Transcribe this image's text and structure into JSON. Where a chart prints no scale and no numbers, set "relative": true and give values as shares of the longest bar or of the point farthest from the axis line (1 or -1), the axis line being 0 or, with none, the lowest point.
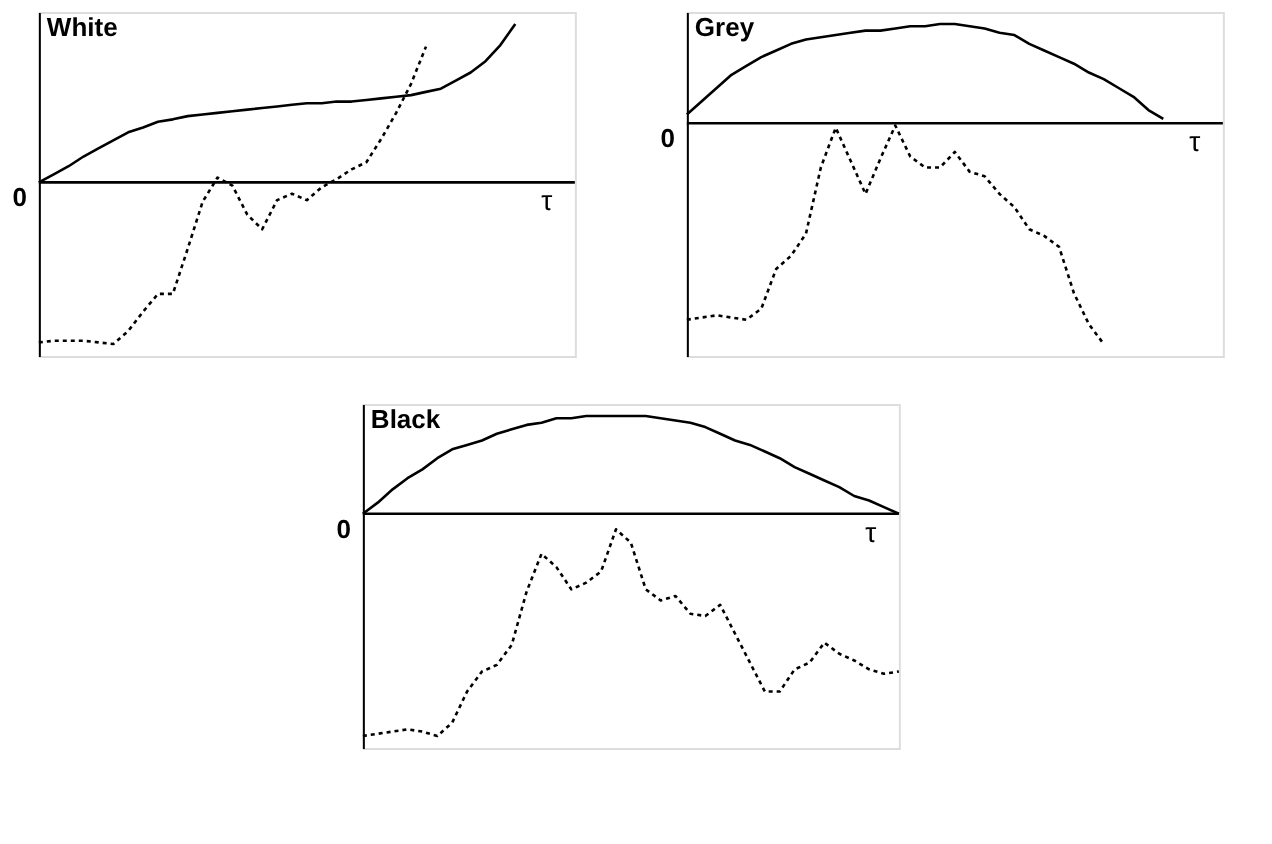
{
  "chart_data": [
    {
      "type": "line",
      "title": "White",
      "xlabel": "τ",
      "annotations": [
        "0"
      ],
      "relative": true,
      "legend": false,
      "grid": false,
      "marker": "none",
      "categories": [
        null,
        null,
        null,
        null,
        null,
        null,
        null,
        null,
        null,
        null,
        null,
        null,
        null,
        null,
        null,
        null,
        null,
        null,
        null,
        null,
        null,
        null,
        null,
        null,
        null,
        null,
        null,
        null,
        null,
        null,
        null,
        null,
        null,
        null,
        null,
        null,
        null
      ],
      "series": [
        {
          "color": "#000000",
          "line_style": "solid",
          "values": [
            0,
            0.05,
            0.1,
            0.16,
            0.21,
            0.26,
            0.31,
            0.34,
            0.375,
            0.39,
            0.41,
            0.42,
            0.43,
            0.44,
            0.45,
            0.46,
            0.47,
            0.48,
            0.49,
            0.49,
            0.5,
            0.5,
            0.51,
            0.52,
            0.53,
            0.54,
            0.56,
            0.58,
            0.63,
            0.68,
            0.75,
            0.85,
            0.98,
            null,
            null,
            null,
            null
          ]
        },
        {
          "color": "#000000",
          "line_style": "dotted",
          "values": [
            -0.99,
            -0.98,
            -0.98,
            -0.98,
            -0.99,
            -1.0,
            -0.92,
            -0.8,
            -0.69,
            -0.69,
            -0.41,
            -0.12,
            0.03,
            -0.02,
            -0.2,
            -0.29,
            -0.11,
            -0.07,
            -0.11,
            -0.03,
            0.02,
            0.08,
            0.125,
            0.27,
            0.43,
            0.61,
            0.84,
            null,
            null,
            null,
            null,
            null,
            null,
            null,
            null,
            null,
            null
          ]
        }
      ]
    },
    {
      "type": "line",
      "title": "Grey",
      "xlabel": "τ",
      "annotations": [
        "0"
      ],
      "relative": true,
      "legend": false,
      "grid": false,
      "marker": "none",
      "categories": [
        null,
        null,
        null,
        null,
        null,
        null,
        null,
        null,
        null,
        null,
        null,
        null,
        null,
        null,
        null,
        null,
        null,
        null,
        null,
        null,
        null,
        null,
        null,
        null,
        null,
        null,
        null,
        null,
        null,
        null,
        null,
        null,
        null,
        null,
        null,
        null,
        null
      ],
      "series": [
        {
          "color": "#000000",
          "line_style": "solid",
          "values": [
            0.04,
            0.1,
            0.16,
            0.22,
            0.26,
            0.3,
            0.33,
            0.36,
            0.38,
            0.39,
            0.4,
            0.41,
            0.42,
            0.42,
            0.43,
            0.44,
            0.44,
            0.45,
            0.45,
            0.44,
            0.43,
            0.41,
            0.4,
            0.36,
            0.33,
            0.3,
            0.27,
            0.23,
            0.2,
            0.16,
            0.12,
            0.06,
            0.02,
            null,
            null,
            null,
            null
          ]
        },
        {
          "color": "#000000",
          "line_style": "dotted",
          "values": [
            -0.89,
            -0.88,
            -0.87,
            -0.88,
            -0.89,
            -0.84,
            -0.66,
            -0.6,
            -0.5,
            -0.2,
            -0.02,
            -0.17,
            -0.32,
            -0.16,
            -0.01,
            -0.15,
            -0.2,
            -0.2,
            -0.13,
            -0.22,
            -0.24,
            -0.32,
            -0.38,
            -0.48,
            -0.51,
            -0.56,
            -0.77,
            -0.91,
            -1.0,
            null,
            null,
            null,
            null,
            null,
            null,
            null,
            null
          ]
        }
      ]
    },
    {
      "type": "line",
      "title": "Black",
      "xlabel": "τ",
      "annotations": [
        "0"
      ],
      "relative": true,
      "legend": false,
      "grid": false,
      "marker": "none",
      "categories": [
        null,
        null,
        null,
        null,
        null,
        null,
        null,
        null,
        null,
        null,
        null,
        null,
        null,
        null,
        null,
        null,
        null,
        null,
        null,
        null,
        null,
        null,
        null,
        null,
        null,
        null,
        null,
        null,
        null,
        null,
        null,
        null,
        null,
        null,
        null,
        null,
        null
      ],
      "series": [
        {
          "color": "#000000",
          "line_style": "solid",
          "values": [
            0,
            0.05,
            0.11,
            0.16,
            0.2,
            0.25,
            0.29,
            0.31,
            0.33,
            0.36,
            0.38,
            0.4,
            0.41,
            0.43,
            0.43,
            0.44,
            0.44,
            0.44,
            0.44,
            0.44,
            0.43,
            0.42,
            0.41,
            0.39,
            0.36,
            0.33,
            0.31,
            0.28,
            0.25,
            0.21,
            0.18,
            0.15,
            0.12,
            0.08,
            0.06,
            0.03,
            0
          ]
        },
        {
          "color": "#000000",
          "line_style": "dotted",
          "values": [
            -1.0,
            -0.99,
            -0.98,
            -0.97,
            -0.98,
            -1.0,
            -0.94,
            -0.8,
            -0.71,
            -0.68,
            -0.59,
            -0.35,
            -0.18,
            -0.24,
            -0.34,
            -0.31,
            -0.26,
            -0.07,
            -0.13,
            -0.34,
            -0.39,
            -0.37,
            -0.45,
            -0.46,
            -0.41,
            -0.54,
            -0.67,
            -0.8,
            -0.8,
            -0.7,
            -0.67,
            -0.58,
            -0.63,
            -0.66,
            -0.7,
            -0.72,
            -0.71
          ]
        }
      ]
    }
  ]
}
